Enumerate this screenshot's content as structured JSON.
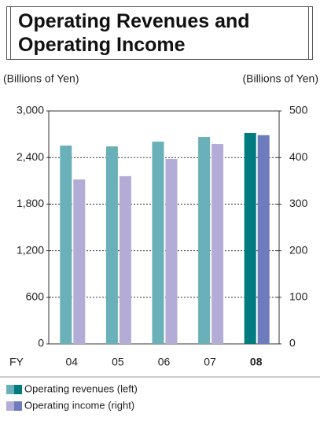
{
  "chart_data": {
    "type": "bar",
    "title": "Operating Revenues and Operating Income",
    "y_label": "(Billions of Yen)",
    "y2_label": "(Billions of Yen)",
    "x_label": "FY",
    "categories": [
      "04",
      "05",
      "06",
      "07",
      "08"
    ],
    "highlight": "08",
    "series": [
      {
        "name": "Operating revenues (left)",
        "color": "#6ab0b8",
        "highlight_color": "#007b7f",
        "values": [
          2554,
          2544,
          2605,
          2665,
          2716
        ]
      },
      {
        "name": "Operating income (right)",
        "color": "#b3acd6",
        "highlight_color": "#6e7bbd",
        "axis": "y2",
        "values": [
          353,
          360,
          397,
          429,
          448
        ]
      }
    ],
    "ylim": [
      0,
      3000
    ],
    "yticks": [
      0,
      600,
      {
        "value": 1200,
        "label": "1,200"
      },
      {
        "value": 1800,
        "label": "1,800"
      },
      {
        "value": 2400,
        "label": "2,400"
      },
      {
        "value": 3000,
        "label": "3,000"
      }
    ],
    "y2lim": [
      0,
      500
    ],
    "y2ticks": [
      0,
      100,
      200,
      300,
      400,
      500
    ],
    "grid": true
  }
}
